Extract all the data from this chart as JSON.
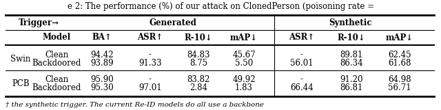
{
  "title_partial": "e 2: The performance (%) of our attack on ClonedPerson (poisoning rate =",
  "rows": [
    [
      "Swin",
      "Clean",
      "94.42",
      "-",
      "84.83",
      "45.67",
      "-",
      "89.81",
      "62.45"
    ],
    [
      "Swin",
      "Backdoored",
      "93.89",
      "91.33",
      "8.75",
      "5.50",
      "56.01",
      "86.34",
      "61.68"
    ],
    [
      "PCB",
      "Clean",
      "95.90",
      "-",
      "83.82",
      "49.92",
      "-",
      "91.20",
      "64.98"
    ],
    [
      "PCB",
      "Backdoored",
      "95.30",
      "97.01",
      "2.84",
      "1.83",
      "66.44",
      "86.81",
      "56.71"
    ]
  ],
  "background_color": "#ffffff",
  "text_color": "#000000",
  "font_size": 8.5
}
